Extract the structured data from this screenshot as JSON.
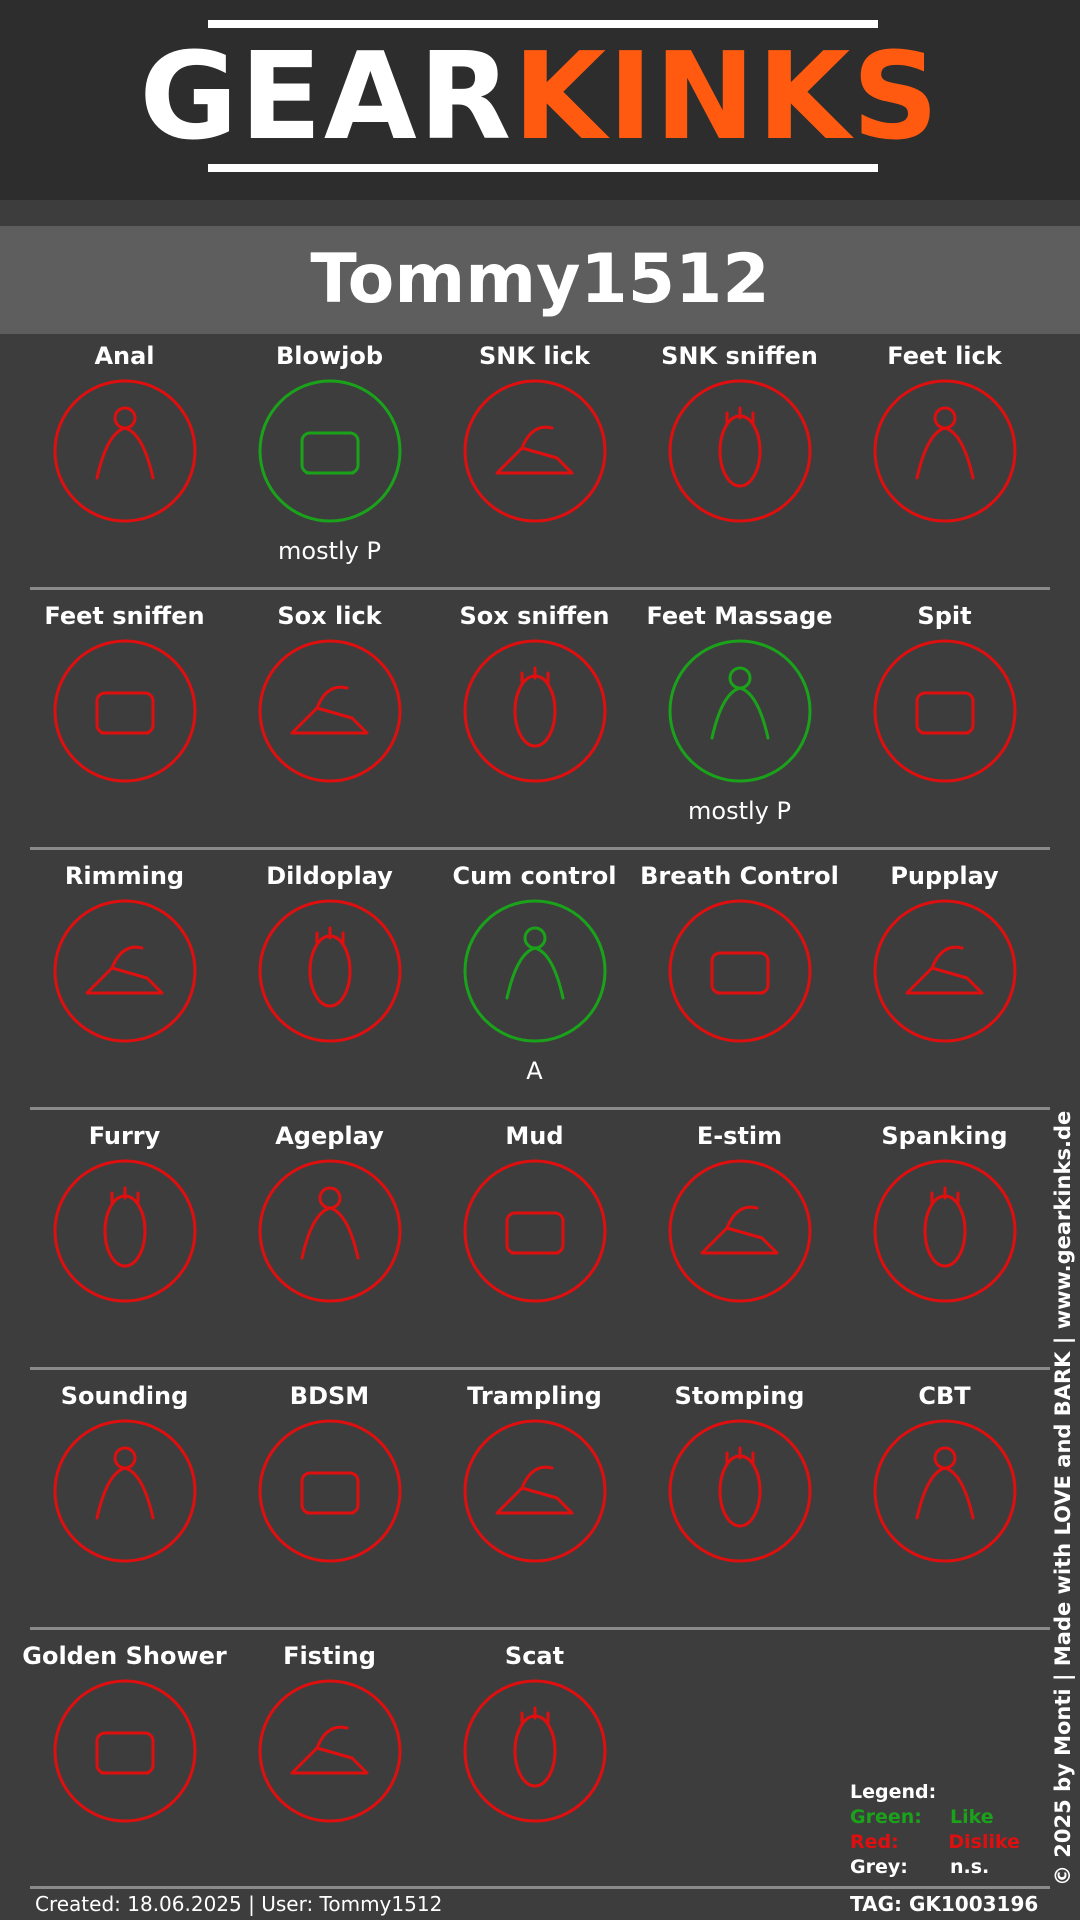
{
  "brand": {
    "part1": "GEAR",
    "part2": "KINKS",
    "white": "#ffffff",
    "orange": "#ff5a10"
  },
  "user": {
    "name": "Tommy1512"
  },
  "colors": {
    "like": "#1aa31a",
    "dislike": "#e00f0f",
    "ns": "#9a9a9a"
  },
  "kinks": [
    {
      "label": "Anal",
      "status": "dislike",
      "note": "",
      "icon": "anal-icon"
    },
    {
      "label": "Blowjob",
      "status": "like",
      "note": "mostly P",
      "icon": "blowjob-icon"
    },
    {
      "label": "SNK lick",
      "status": "dislike",
      "note": "",
      "icon": "sneaker-lick-icon"
    },
    {
      "label": "SNK sniffen",
      "status": "dislike",
      "note": "",
      "icon": "sneaker-sniff-icon"
    },
    {
      "label": "Feet lick",
      "status": "dislike",
      "note": "",
      "icon": "foot-lick-icon"
    },
    {
      "label": "Feet sniffen",
      "status": "dislike",
      "note": "",
      "icon": "feet-sniff-icon"
    },
    {
      "label": "Sox lick",
      "status": "dislike",
      "note": "",
      "icon": "socks-lick-icon"
    },
    {
      "label": "Sox sniffen",
      "status": "dislike",
      "note": "",
      "icon": "socks-sniff-icon"
    },
    {
      "label": "Feet Massage",
      "status": "like",
      "note": "mostly P",
      "icon": "feet-massage-icon"
    },
    {
      "label": "Spit",
      "status": "dislike",
      "note": "",
      "icon": "spit-icon"
    },
    {
      "label": "Rimming",
      "status": "dislike",
      "note": "",
      "icon": "rimming-icon"
    },
    {
      "label": "Dildoplay",
      "status": "dislike",
      "note": "",
      "icon": "dildo-icon"
    },
    {
      "label": "Cum control",
      "status": "like",
      "note": "A",
      "icon": "cum-control-icon"
    },
    {
      "label": "Breath Control",
      "status": "dislike",
      "note": "",
      "icon": "breath-control-icon"
    },
    {
      "label": "Pupplay",
      "status": "dislike",
      "note": "",
      "icon": "pup-icon"
    },
    {
      "label": "Furry",
      "status": "dislike",
      "note": "",
      "icon": "wolf-icon"
    },
    {
      "label": "Ageplay",
      "status": "dislike",
      "note": "",
      "icon": "pacifier-icon"
    },
    {
      "label": "Mud",
      "status": "dislike",
      "note": "",
      "icon": "mud-icon"
    },
    {
      "label": "E-stim",
      "status": "dislike",
      "note": "",
      "icon": "estim-icon"
    },
    {
      "label": "Spanking",
      "status": "dislike",
      "note": "",
      "icon": "paddle-icon"
    },
    {
      "label": "Sounding",
      "status": "dislike",
      "note": "",
      "icon": "sounding-icon"
    },
    {
      "label": "BDSM",
      "status": "dislike",
      "note": "",
      "icon": "bdsm-heart-icon"
    },
    {
      "label": "Trampling",
      "status": "dislike",
      "note": "",
      "icon": "trampling-icon"
    },
    {
      "label": "Stomping",
      "status": "dislike",
      "note": "",
      "icon": "boot-icon"
    },
    {
      "label": "CBT",
      "status": "dislike",
      "note": "",
      "icon": "cbt-icon"
    },
    {
      "label": "Golden Shower",
      "status": "dislike",
      "note": "",
      "icon": "golden-shower-icon"
    },
    {
      "label": "Fisting",
      "status": "dislike",
      "note": "",
      "icon": "fist-icon"
    },
    {
      "label": "Scat",
      "status": "dislike",
      "note": "",
      "icon": "poop-icon"
    }
  ],
  "legend": {
    "title": "Legend:",
    "green_key": "Green:",
    "green_val": "Like",
    "red_key": "Red:",
    "red_val": "Dislike",
    "grey_key": "Grey:",
    "grey_val": "n.s."
  },
  "footer": {
    "created": "Created: 18.06.2025 | User: Tommy1512",
    "tag": "TAG: GK1003196",
    "side": "© 2025 by Monti | Made with LOVE and BARK | www.gearkinks.de"
  }
}
